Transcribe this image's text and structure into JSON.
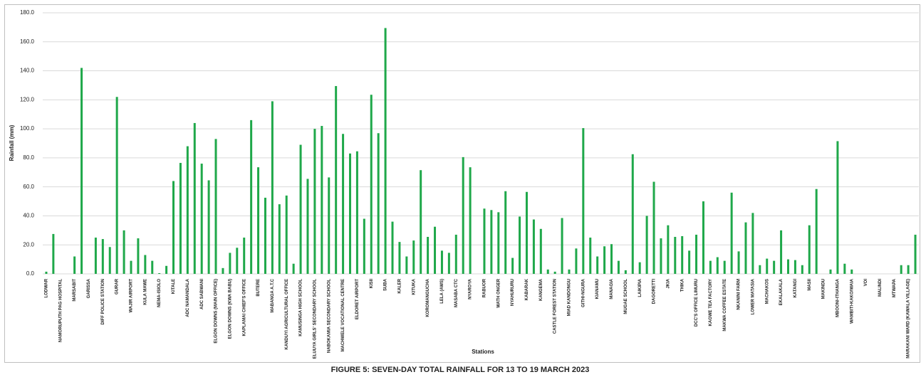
{
  "chart_data": {
    "type": "bar",
    "title": "FIGURE 5: SEVEN-DAY TOTAL RAINFALL FOR 13 TO 19 MARCH 2023",
    "y_label": "Rainfall (mm)",
    "x_label": "Stations",
    "color": "#1fa84a",
    "grid": true,
    "ylim": [
      0,
      180
    ],
    "yticks": [
      {
        "value": 0,
        "label": "0.0"
      },
      {
        "value": 20,
        "label": "20.0"
      },
      {
        "value": 40,
        "label": "40.0"
      },
      {
        "value": 60,
        "label": "60.0"
      },
      {
        "value": 80,
        "label": "80.0"
      },
      {
        "value": 100,
        "label": "100.0"
      },
      {
        "value": 120,
        "label": "120.0"
      },
      {
        "value": 140,
        "label": "140.0"
      },
      {
        "value": 160,
        "label": "160.0"
      },
      {
        "value": 180,
        "label": "180.0"
      }
    ],
    "categories": [
      "LODWAR",
      null,
      "NAMORUPUTH PAG HOSPITAL",
      null,
      "MARSABIT",
      null,
      "GARISSA",
      null,
      "DIFF POLICE STATION",
      null,
      "GURAR",
      null,
      "WAJIR AIRPORT",
      null,
      "KULA MAWE",
      null,
      "NEMA-ISIOLO",
      null,
      "KITALE",
      null,
      "ADC NAMANDALA",
      null,
      "ADC SABWANI",
      null,
      "ELGON DOWNS (MAIN OFFICE)",
      null,
      "ELGON DOWNS (KWA BABU)",
      null,
      "KAPLAMAI CHIEF'S OFFICE",
      null,
      "BUTERE",
      null,
      "MABANGA A.T.C",
      null,
      "KANDUYI AGRICULTURAL OFFICE",
      null,
      "KAMUSINGA HIGH SCHOOL",
      null,
      "ELUUYA GIRLS' SECONDARY SCHOOL",
      null,
      "NABOKAMIA SECONDARY SCHOOL",
      null,
      "MACHWELE VOCATIONAL CENTRE",
      null,
      "ELDORET AIRPORT",
      null,
      "KISII",
      null,
      "SUBA",
      null,
      "KALER",
      null,
      "KITUKA",
      null,
      "KOROMANGUCHA",
      null,
      "LELA (AWS)",
      null,
      "MASABA CTC",
      null,
      "NYAROYA",
      null,
      "RABUOR",
      null,
      "WATH ONGER",
      null,
      "NYAHURURU",
      null,
      "KABARAK",
      null,
      "KANGEMA",
      null,
      "CASTLE FOREST STATION",
      null,
      "MIAD KANDONGU",
      null,
      "GITHI-NGURA",
      null,
      "KIANAMU",
      null,
      "MANAGIA",
      null,
      "MUGAE SCHOOL",
      null,
      "LAIKIPIA",
      null,
      "DAGORETTI",
      null,
      "JKIA",
      null,
      "THIKA",
      null,
      "DCC'S OFFICE LIMURU",
      null,
      "KAGWE TEA FACTORY",
      null,
      "MAKWA COFFEE ESTATE",
      null,
      "NKANINI FARM",
      null,
      "LOWER MATASIA",
      null,
      "MACHAKOS",
      null,
      "EKALAKALA",
      null,
      "KATANGI",
      null,
      "MASII",
      null,
      "MAKINDU",
      null,
      "MBOONI-ITHANGA",
      null,
      "WAMBITI-KAKO/WAIA",
      null,
      "VOI",
      null,
      "MALINDI",
      null,
      "MTWAPA",
      null,
      "MARAKANI WARD (KAWALA VILLAGE)",
      null
    ],
    "values": [
      1.5,
      27.5,
      0,
      0,
      12,
      142,
      0,
      25,
      24,
      18.5,
      122,
      30,
      9,
      24.5,
      13,
      9,
      0.5,
      5.5,
      64,
      76.5,
      88,
      104,
      76,
      64.5,
      93,
      4,
      14.5,
      18,
      25,
      106,
      73.5,
      52.5,
      119,
      48,
      54,
      7,
      89,
      65.5,
      100,
      102,
      66.5,
      129.5,
      96.5,
      83,
      84.5,
      38,
      123.5,
      97,
      169.5,
      36,
      22,
      12,
      23,
      71.5,
      25.5,
      32.5,
      16,
      14.5,
      27,
      80.5,
      73.5,
      0,
      45,
      44,
      42.5,
      57,
      11,
      39.5,
      56.5,
      37.5,
      31,
      3,
      1.5,
      38.5,
      3,
      17.5,
      100.5,
      25,
      12,
      19,
      20.5,
      9,
      2.5,
      82.5,
      8,
      40,
      63.5,
      24.5,
      33.5,
      25.5,
      26,
      16,
      27,
      50,
      9,
      11.5,
      9,
      56,
      15.5,
      35.5,
      42,
      6,
      10.5,
      9,
      30,
      10,
      9.5,
      6,
      33.5,
      58.5,
      0,
      3,
      91.5,
      7,
      3,
      0,
      0,
      0,
      0,
      0,
      0,
      6,
      6,
      27
    ]
  }
}
